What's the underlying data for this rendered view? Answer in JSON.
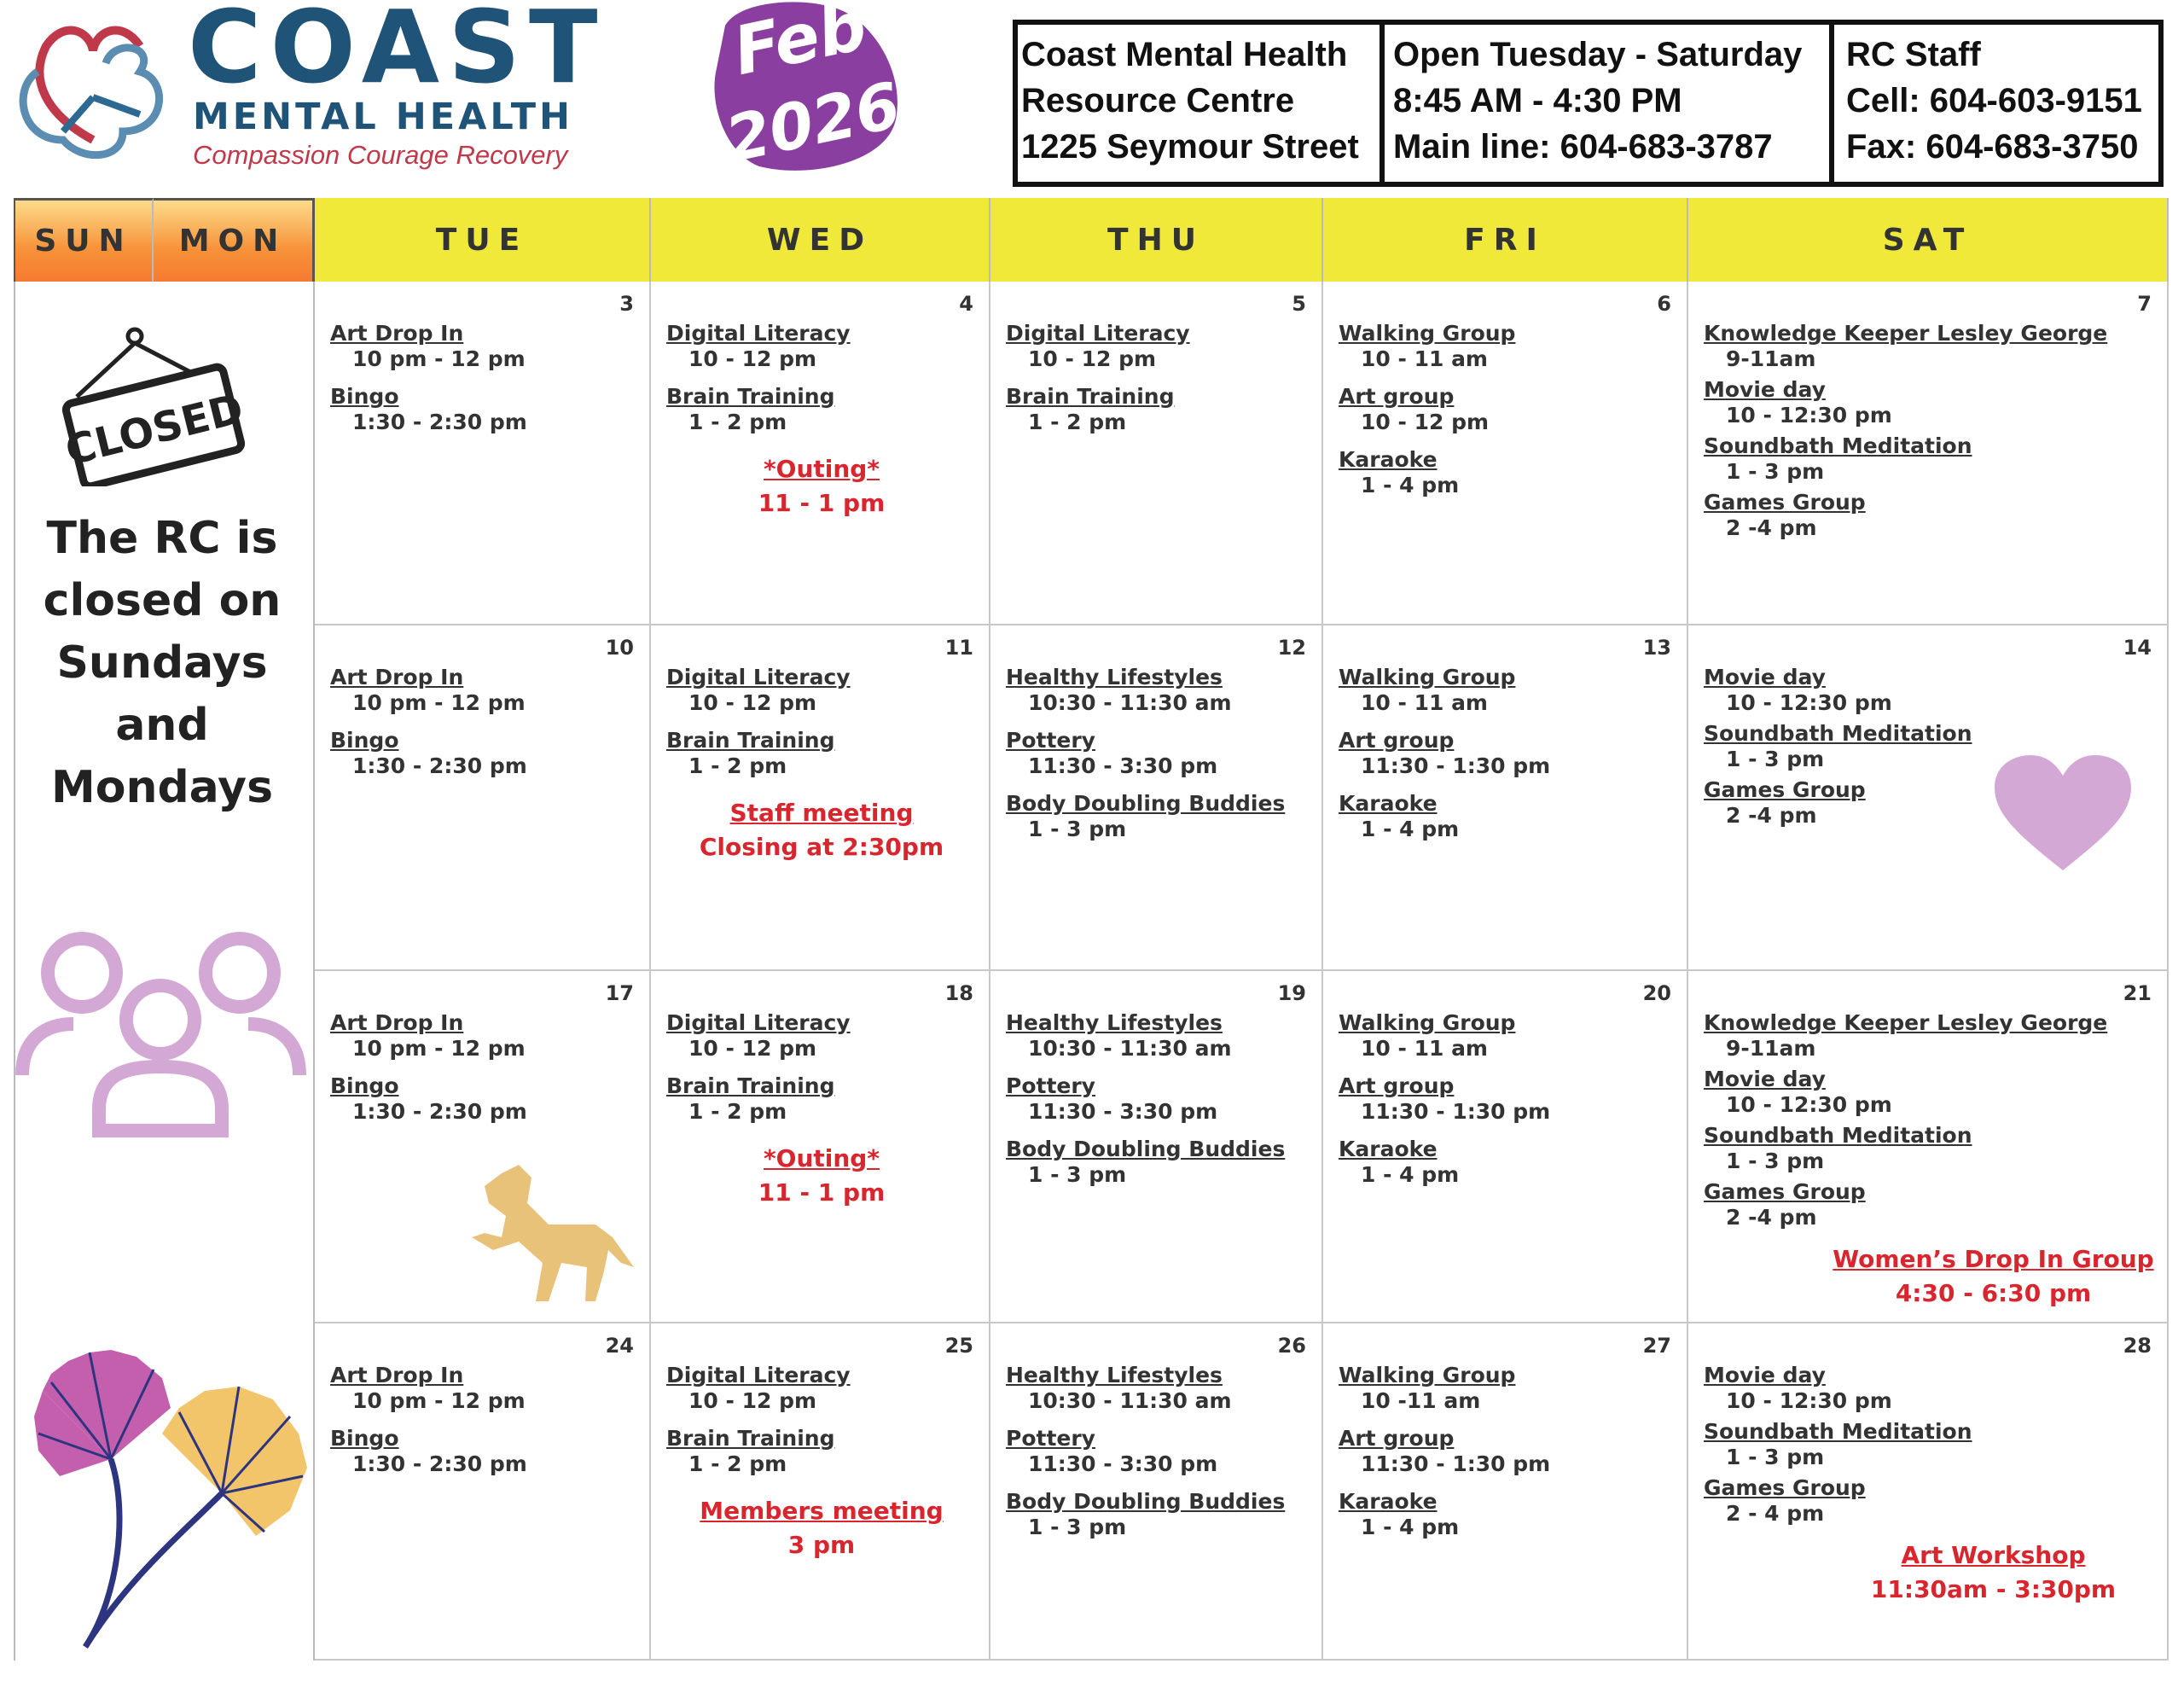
{
  "logo": {
    "name": "COAST",
    "subtitle": "MENTAL HEALTH",
    "tagline": "Compassion Courage Recovery"
  },
  "month_badge": {
    "month": "Feb",
    "year": "2026",
    "color": "#8a3fa0"
  },
  "info": {
    "location": [
      "Coast Mental Health",
      "Resource Centre",
      "1225 Seymour Street"
    ],
    "hours": [
      "Open Tuesday - Saturday",
      "8:45 AM - 4:30 PM",
      "Main line: 604-683-3787"
    ],
    "staff": [
      "RC Staff",
      "Cell: 604-603-9151",
      "Fax: 604-683-3750"
    ]
  },
  "weekdays": [
    "SUN",
    "MON",
    "TUE",
    "WED",
    "THU",
    "FRI",
    "SAT"
  ],
  "closed": {
    "sign": "CLOSED",
    "message": "The RC is closed on Sundays and Mondays"
  },
  "colors": {
    "accent_red": "#d9262e",
    "header_yellow": "#f0e93a",
    "header_orange": "#f7923a"
  },
  "weeks": [
    {
      "days": [
        {
          "date": "3",
          "events": [
            {
              "title": "Art Drop In",
              "time": "10 pm - 12 pm"
            },
            {
              "title": "Bingo",
              "time": "1:30 - 2:30 pm"
            }
          ]
        },
        {
          "date": "4",
          "events": [
            {
              "title": "Digital Literacy",
              "time": "10 - 12 pm"
            },
            {
              "title": "Brain Training",
              "time": "1 - 2 pm"
            },
            {
              "title": "*Outing*",
              "time": "11 - 1 pm",
              "red": true
            }
          ]
        },
        {
          "date": "5",
          "events": [
            {
              "title": "Digital Literacy",
              "time": "10 - 12 pm"
            },
            {
              "title": "Brain Training",
              "time": "1 - 2 pm"
            }
          ]
        },
        {
          "date": "6",
          "events": [
            {
              "title": "Walking Group",
              "time": "10 - 11 am"
            },
            {
              "title": "Art group",
              "time": "10 - 12 pm"
            },
            {
              "title": "Karaoke",
              "time": "1 - 4 pm"
            }
          ]
        },
        {
          "date": "7",
          "events": [
            {
              "title": "Knowledge Keeper Lesley George",
              "time": "9-11am"
            },
            {
              "title": "Movie day",
              "time": "10 - 12:30 pm"
            },
            {
              "title": "Soundbath Meditation",
              "time": "1 - 3 pm"
            },
            {
              "title": "Games Group",
              "time": "2 -4 pm"
            }
          ]
        }
      ]
    },
    {
      "days": [
        {
          "date": "10",
          "events": [
            {
              "title": "Art Drop In",
              "time": "10 pm - 12 pm"
            },
            {
              "title": "Bingo",
              "time": "1:30 - 2:30 pm"
            }
          ]
        },
        {
          "date": "11",
          "events": [
            {
              "title": "Digital Literacy",
              "time": "10 - 12 pm"
            },
            {
              "title": "Brain Training",
              "time": "1 - 2 pm"
            },
            {
              "title": "Staff meeting",
              "time": "Closing at 2:30pm",
              "red": true
            }
          ]
        },
        {
          "date": "12",
          "events": [
            {
              "title": "Healthy Lifestyles",
              "time": "10:30 - 11:30 am"
            },
            {
              "title": "Pottery",
              "time": "11:30 - 3:30 pm"
            },
            {
              "title": "Body Doubling Buddies",
              "time": "1 - 3 pm"
            }
          ]
        },
        {
          "date": "13",
          "events": [
            {
              "title": "Walking Group",
              "time": "10 - 11 am"
            },
            {
              "title": "Art group",
              "time": "11:30 - 1:30 pm"
            },
            {
              "title": "Karaoke",
              "time": "1 - 4 pm"
            }
          ]
        },
        {
          "date": "14",
          "events": [
            {
              "title": "Movie day",
              "time": "10 - 12:30 pm"
            },
            {
              "title": "Soundbath Meditation",
              "time": "1 - 3 pm"
            },
            {
              "title": "Games Group",
              "time": "2 -4 pm"
            }
          ]
        }
      ]
    },
    {
      "days": [
        {
          "date": "17",
          "events": [
            {
              "title": "Art Drop In",
              "time": "10 pm - 12 pm"
            },
            {
              "title": "Bingo",
              "time": "1:30 - 2:30 pm"
            }
          ]
        },
        {
          "date": "18",
          "events": [
            {
              "title": "Digital Literacy",
              "time": "10 - 12 pm"
            },
            {
              "title": "Brain Training",
              "time": "1 - 2 pm"
            },
            {
              "title": "*Outing*",
              "time": "11 - 1 pm",
              "red": true
            }
          ]
        },
        {
          "date": "19",
          "events": [
            {
              "title": "Healthy Lifestyles",
              "time": "10:30 - 11:30 am"
            },
            {
              "title": "Pottery",
              "time": "11:30 - 3:30 pm"
            },
            {
              "title": "Body Doubling Buddies",
              "time": "1 - 3 pm"
            }
          ]
        },
        {
          "date": "20",
          "events": [
            {
              "title": "Walking Group",
              "time": "10 - 11 am"
            },
            {
              "title": "Art group",
              "time": "11:30 - 1:30 pm"
            },
            {
              "title": "Karaoke",
              "time": "1 - 4 pm"
            }
          ]
        },
        {
          "date": "21",
          "events": [
            {
              "title": "Knowledge Keeper Lesley George",
              "time": "9-11am"
            },
            {
              "title": "Movie day",
              "time": "10 - 12:30 pm"
            },
            {
              "title": "Soundbath Meditation",
              "time": "1 - 3 pm"
            },
            {
              "title": "Games Group",
              "time": "2 -4 pm"
            },
            {
              "title": "Women’s Drop In Group",
              "time": "4:30 - 6:30 pm",
              "red": true
            }
          ]
        }
      ]
    },
    {
      "days": [
        {
          "date": "24",
          "events": [
            {
              "title": "Art Drop In",
              "time": "10 pm - 12 pm"
            },
            {
              "title": "Bingo",
              "time": "1:30 - 2:30 pm"
            }
          ]
        },
        {
          "date": "25",
          "events": [
            {
              "title": "Digital Literacy",
              "time": "10 - 12 pm"
            },
            {
              "title": "Brain Training",
              "time": "1 - 2 pm"
            },
            {
              "title": "Members meeting",
              "time": "3 pm",
              "red": true
            }
          ]
        },
        {
          "date": "26",
          "events": [
            {
              "title": "Healthy Lifestyles",
              "time": "10:30 - 11:30 am"
            },
            {
              "title": "Pottery",
              "time": "11:30 - 3:30 pm"
            },
            {
              "title": "Body Doubling Buddies",
              "time": "1 - 3 pm"
            }
          ]
        },
        {
          "date": "27",
          "events": [
            {
              "title": "Walking Group",
              "time": "10 -11 am"
            },
            {
              "title": "Art group",
              "time": "11:30 - 1:30 pm"
            },
            {
              "title": "Karaoke",
              "time": "1 - 4 pm"
            }
          ]
        },
        {
          "date": "28",
          "events": [
            {
              "title": "Movie day",
              "time": "10 - 12:30 pm"
            },
            {
              "title": "Soundbath Meditation",
              "time": "1 - 3 pm"
            },
            {
              "title": "Games Group",
              "time": "2 - 4 pm"
            },
            {
              "title": "Art Workshop",
              "time": "11:30am - 3:30pm",
              "red": true
            }
          ]
        }
      ]
    }
  ]
}
